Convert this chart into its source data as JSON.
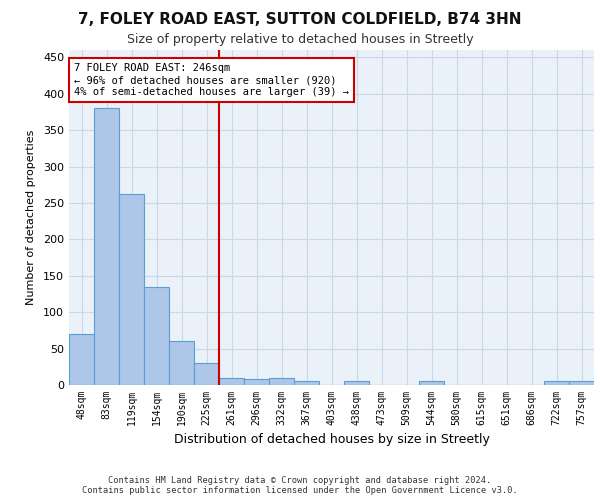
{
  "title": "7, FOLEY ROAD EAST, SUTTON COLDFIELD, B74 3HN",
  "subtitle": "Size of property relative to detached houses in Streetly",
  "xlabel": "Distribution of detached houses by size in Streetly",
  "ylabel": "Number of detached properties",
  "bins": [
    "48sqm",
    "83sqm",
    "119sqm",
    "154sqm",
    "190sqm",
    "225sqm",
    "261sqm",
    "296sqm",
    "332sqm",
    "367sqm",
    "403sqm",
    "438sqm",
    "473sqm",
    "509sqm",
    "544sqm",
    "580sqm",
    "615sqm",
    "651sqm",
    "686sqm",
    "722sqm",
    "757sqm"
  ],
  "bar_heights": [
    70,
    380,
    262,
    135,
    60,
    30,
    10,
    8,
    10,
    5,
    0,
    5,
    0,
    0,
    5,
    0,
    0,
    0,
    0,
    5,
    5
  ],
  "bar_color": "#aec6e8",
  "bar_edge_color": "#5a9fd4",
  "grid_color": "#c8d8e8",
  "background_color": "#eaf1f8",
  "vline_x": 5.5,
  "annotation_text": "7 FOLEY ROAD EAST: 246sqm\n← 96% of detached houses are smaller (920)\n4% of semi-detached houses are larger (39) →",
  "annotation_box_color": "#ffffff",
  "annotation_border_color": "#cc0000",
  "vline_color": "#cc0000",
  "footer_line1": "Contains HM Land Registry data © Crown copyright and database right 2024.",
  "footer_line2": "Contains public sector information licensed under the Open Government Licence v3.0.",
  "ylim": [
    0,
    460
  ],
  "yticks": [
    0,
    50,
    100,
    150,
    200,
    250,
    300,
    350,
    400,
    450
  ]
}
